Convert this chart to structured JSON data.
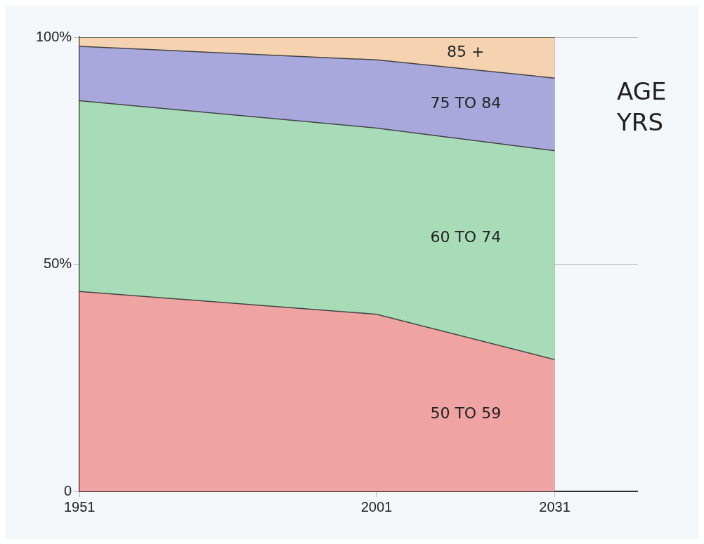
{
  "chart_data": {
    "type": "area",
    "stacked": true,
    "legend": false,
    "legend_title": "AGE YRS",
    "grid": true,
    "x": [
      1951,
      2001,
      2031
    ],
    "series": [
      {
        "name": "50 TO 59",
        "color": "#f0a3a3",
        "values": [
          44,
          39,
          29
        ]
      },
      {
        "name": "60 TO 74",
        "color": "#a8dcb8",
        "values": [
          42,
          41,
          46
        ]
      },
      {
        "name": "75 TO 84",
        "color": "#a9a8dc",
        "values": [
          12,
          15,
          16
        ]
      },
      {
        "name": "85 +",
        "color": "#f5d3b0",
        "values": [
          2,
          5,
          9
        ]
      }
    ],
    "xlim": [
      1951,
      2045
    ],
    "xticks": [
      1951,
      2001,
      2031
    ],
    "ylim": [
      0,
      100
    ],
    "yticks": [
      0,
      {
        "value": 50,
        "label": "50%"
      },
      {
        "value": 100,
        "label": "100%"
      }
    ]
  }
}
